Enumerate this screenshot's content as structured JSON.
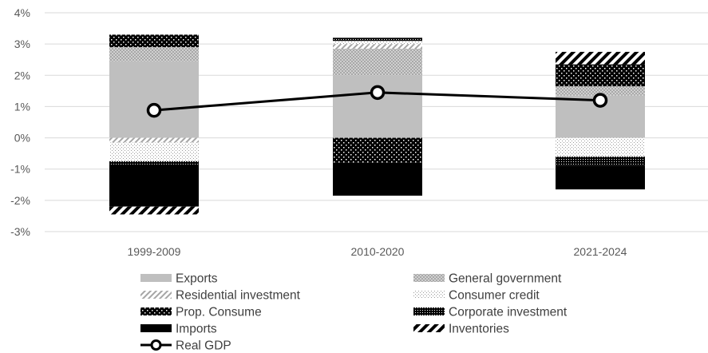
{
  "chart_data": {
    "type": "bar",
    "stacked": true,
    "categories": [
      "1999-2009",
      "2010-2020",
      "2021-2024"
    ],
    "ylim": [
      -3,
      4
    ],
    "yticks": [
      "-3%",
      "-2%",
      "-1%",
      "0%",
      "1%",
      "2%",
      "3%",
      "4%"
    ],
    "grid": true,
    "legend_position": "bottom",
    "series": [
      {
        "name": "Exports",
        "key": "exports",
        "values": [
          2.45,
          2.0,
          1.35
        ]
      },
      {
        "name": "General government",
        "key": "gov",
        "values": [
          0.45,
          0.85,
          0.3
        ]
      },
      {
        "name": "Residential investment",
        "key": "resid",
        "values": [
          -0.15,
          0.15,
          0.0
        ]
      },
      {
        "name": "Consumer credit",
        "key": "credit",
        "values": [
          -0.6,
          0.1,
          -0.6
        ]
      },
      {
        "name": "Prop. Consume",
        "key": "prop",
        "values": [
          0.4,
          -0.8,
          0.7
        ]
      },
      {
        "name": "Corporate investment",
        "key": "corp",
        "values": [
          -0.1,
          0.1,
          -0.3
        ]
      },
      {
        "name": "Imports",
        "key": "imports",
        "values": [
          -1.35,
          -1.05,
          -0.75
        ]
      },
      {
        "name": "Inventories",
        "key": "inv",
        "values": [
          -0.25,
          0.0,
          0.4
        ]
      }
    ],
    "line": {
      "name": "Real GDP",
      "values": [
        0.88,
        1.45,
        1.2
      ]
    },
    "colors": {
      "exports": "#bfbfbf",
      "gridline": "#d9d9d9",
      "axis_text": "#595959",
      "line": "#000000"
    }
  }
}
